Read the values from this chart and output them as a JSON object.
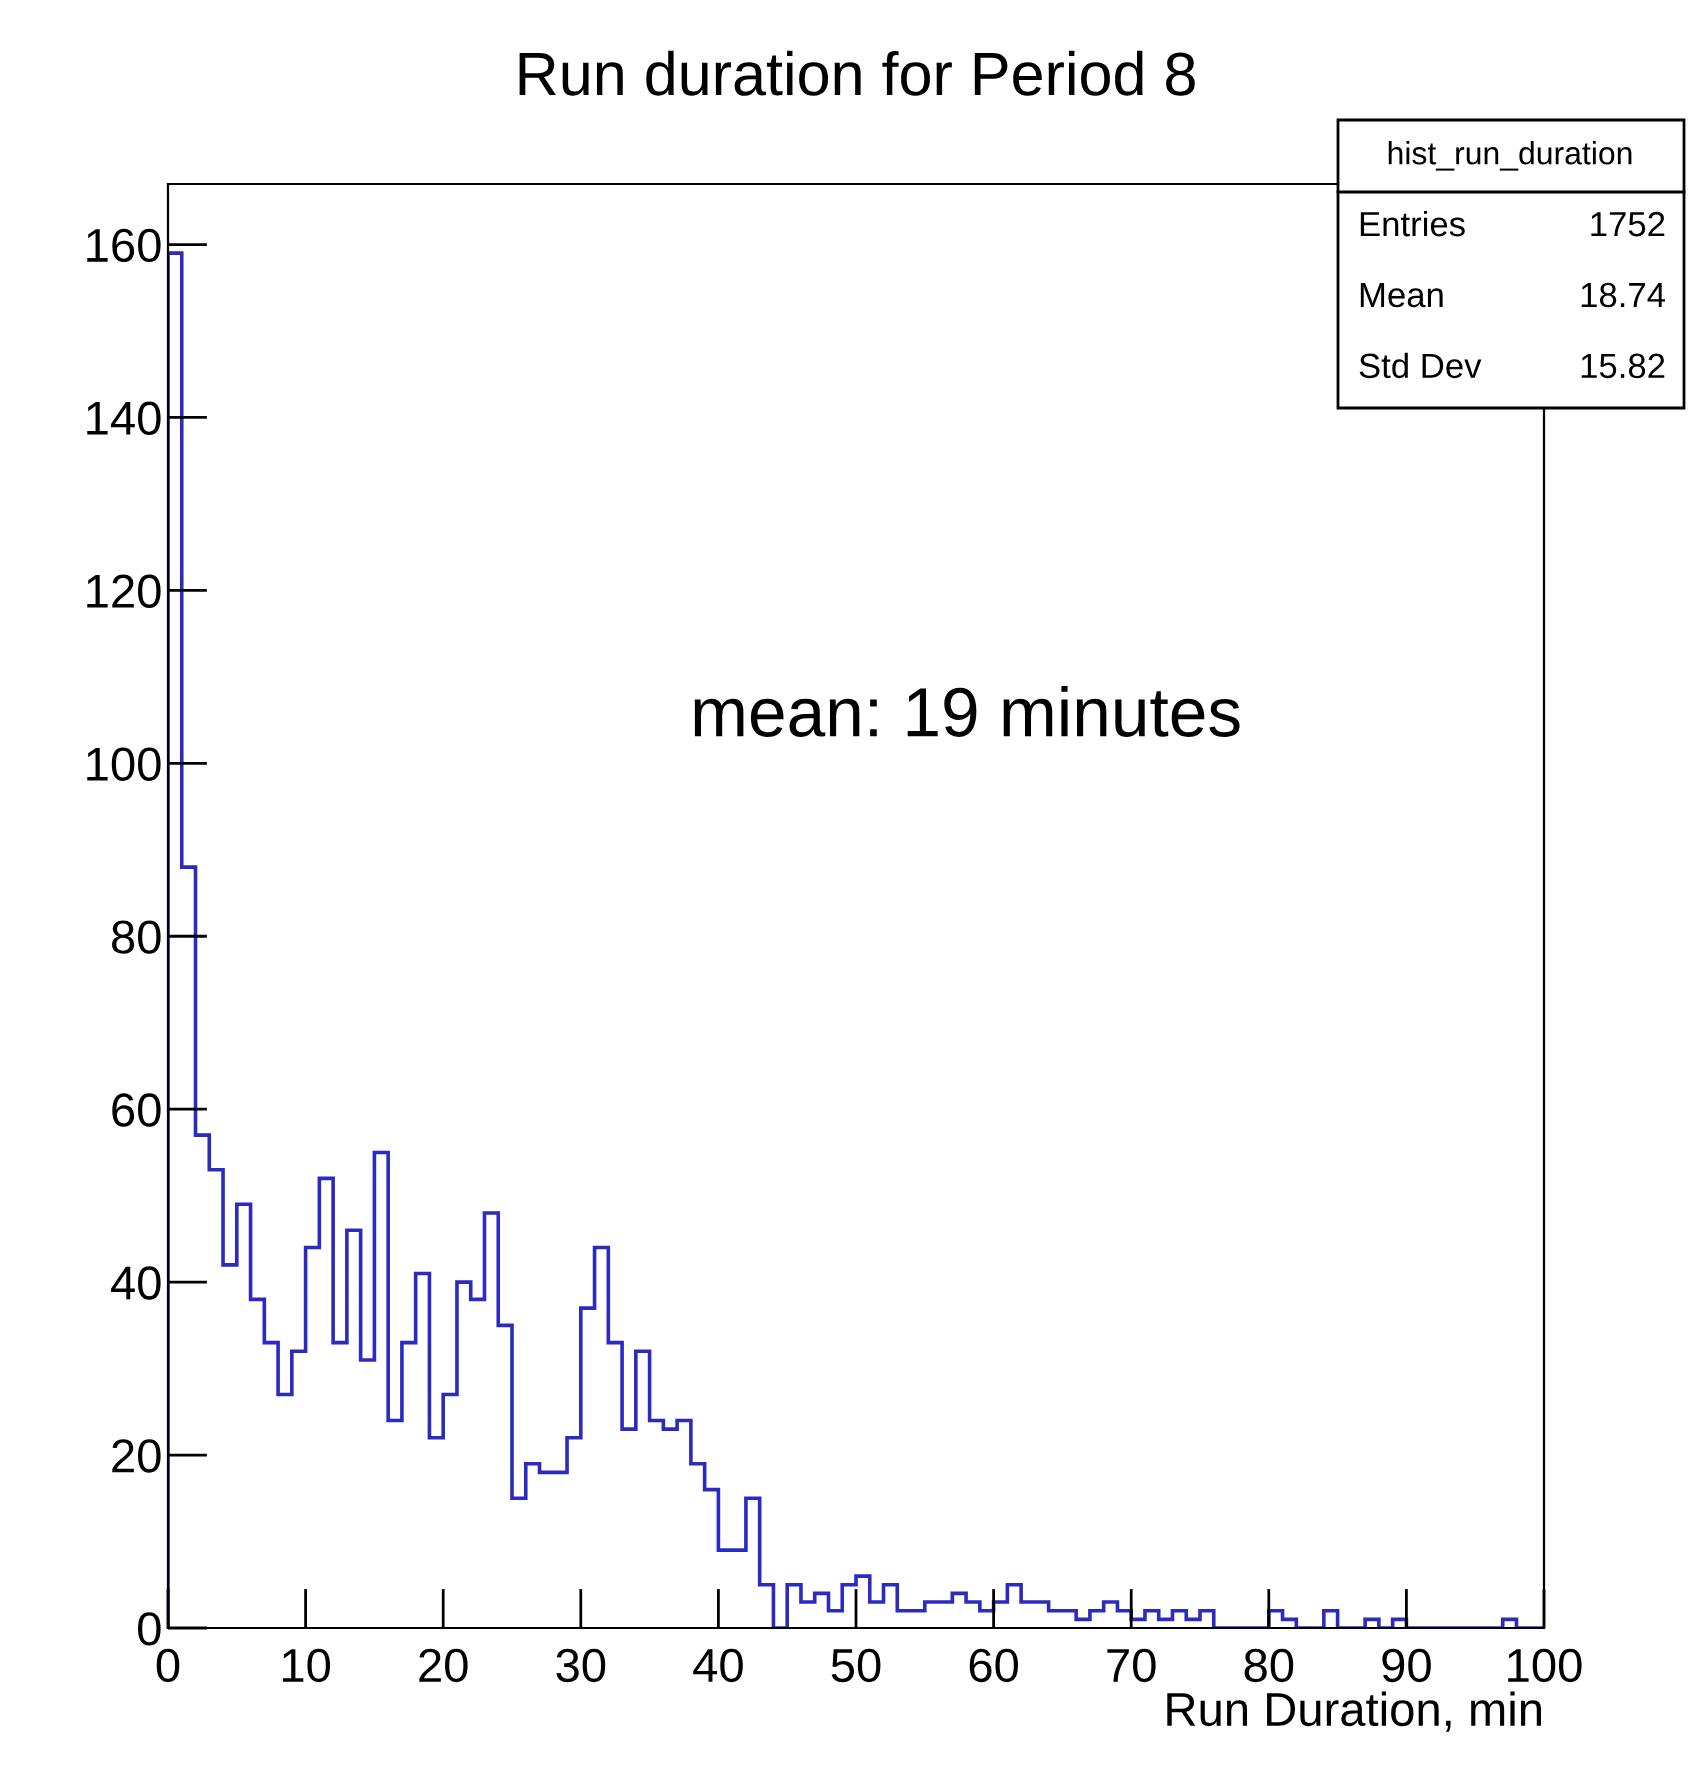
{
  "chart_data": {
    "type": "histogram",
    "title": "Run duration for Period 8",
    "xlabel": "Run Duration, min",
    "bins": [
      0,
      1,
      2,
      3,
      4,
      5,
      6,
      7,
      8,
      9,
      10,
      11,
      12,
      13,
      14,
      15,
      16,
      17,
      18,
      19,
      20,
      21,
      22,
      23,
      24,
      25,
      26,
      27,
      28,
      29,
      30,
      31,
      32,
      33,
      34,
      35,
      36,
      37,
      38,
      39,
      40,
      41,
      42,
      43,
      44,
      45,
      46,
      47,
      48,
      49,
      50,
      51,
      52,
      53,
      54,
      55,
      56,
      57,
      58,
      59,
      60,
      61,
      62,
      63,
      64,
      65,
      66,
      67,
      68,
      69,
      70,
      71,
      72,
      73,
      74,
      75,
      76,
      77,
      78,
      79,
      80,
      81,
      82,
      83,
      84,
      85,
      86,
      87,
      88,
      89,
      90,
      91,
      92,
      93,
      94,
      95,
      96,
      97,
      98,
      99,
      100
    ],
    "values": [
      159,
      88,
      57,
      53,
      42,
      49,
      38,
      33,
      27,
      32,
      44,
      52,
      33,
      46,
      31,
      55,
      24,
      33,
      41,
      22,
      27,
      40,
      38,
      48,
      35,
      15,
      19,
      18,
      18,
      22,
      37,
      44,
      33,
      23,
      32,
      24,
      23,
      24,
      19,
      16,
      9,
      9,
      15,
      5,
      0,
      5,
      3,
      4,
      2,
      5,
      6,
      3,
      5,
      2,
      2,
      3,
      3,
      4,
      3,
      2,
      3,
      5,
      3,
      3,
      2,
      2,
      1,
      2,
      3,
      2,
      1,
      2,
      1,
      2,
      1,
      2,
      0,
      0,
      0,
      0,
      2,
      1,
      0,
      0,
      2,
      0,
      0,
      1,
      0,
      1,
      0,
      0,
      0,
      0,
      0,
      0,
      0,
      1,
      0,
      0
    ],
    "color": "#2b2bbf",
    "xlim": [
      0,
      100
    ],
    "xticks": [
      0,
      10,
      20,
      30,
      40,
      50,
      60,
      70,
      80,
      90,
      100
    ],
    "ylim": [
      0,
      167
    ],
    "yticks": [
      0,
      20,
      40,
      60,
      80,
      100,
      120,
      140,
      160
    ],
    "grid": false,
    "annotations": [
      "hist_run_duration",
      "Entries",
      "1752",
      "Mean",
      "18.74",
      "Std Dev",
      "15.82",
      "mean: 19 minutes"
    ]
  }
}
